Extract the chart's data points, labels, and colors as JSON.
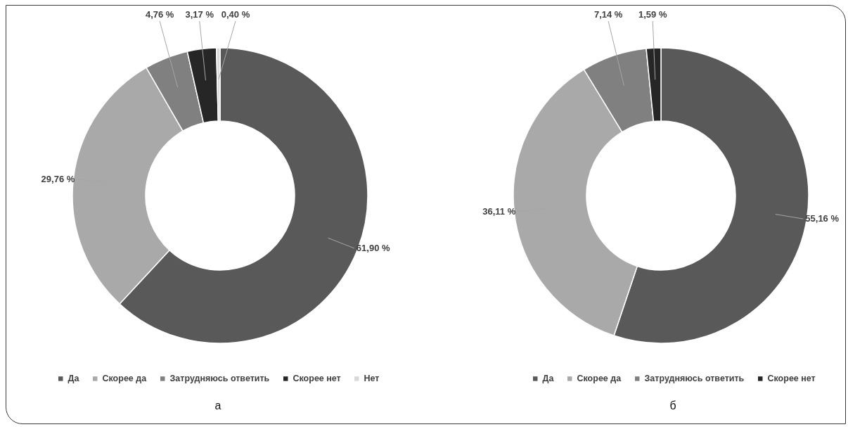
{
  "chart_data": [
    {
      "type": "donut",
      "title": "а",
      "categories": [
        "Да",
        "Скорее да",
        "Затрудняюсь ответить",
        "Скорее нет",
        "Нет"
      ],
      "values": [
        61.9,
        29.76,
        4.76,
        3.17,
        0.4
      ],
      "colors": [
        "#595959",
        "#a9a9a9",
        "#808080",
        "#262626",
        "#d9d9d9"
      ],
      "value_labels": [
        "61,90 %",
        "29,76 %",
        "4,76 %",
        "3,17 %",
        "0,40 %"
      ],
      "legend": "bottom"
    },
    {
      "type": "donut",
      "title": "б",
      "categories": [
        "Да",
        "Скорее да",
        "Затрудняюсь ответить",
        "Скорее нет"
      ],
      "values": [
        55.16,
        36.11,
        7.14,
        1.59
      ],
      "colors": [
        "#595959",
        "#a9a9a9",
        "#808080",
        "#262626"
      ],
      "value_labels": [
        "55,16 %",
        "36,11 %",
        "7,14 %",
        "1,59 %"
      ],
      "legend": "bottom"
    }
  ]
}
